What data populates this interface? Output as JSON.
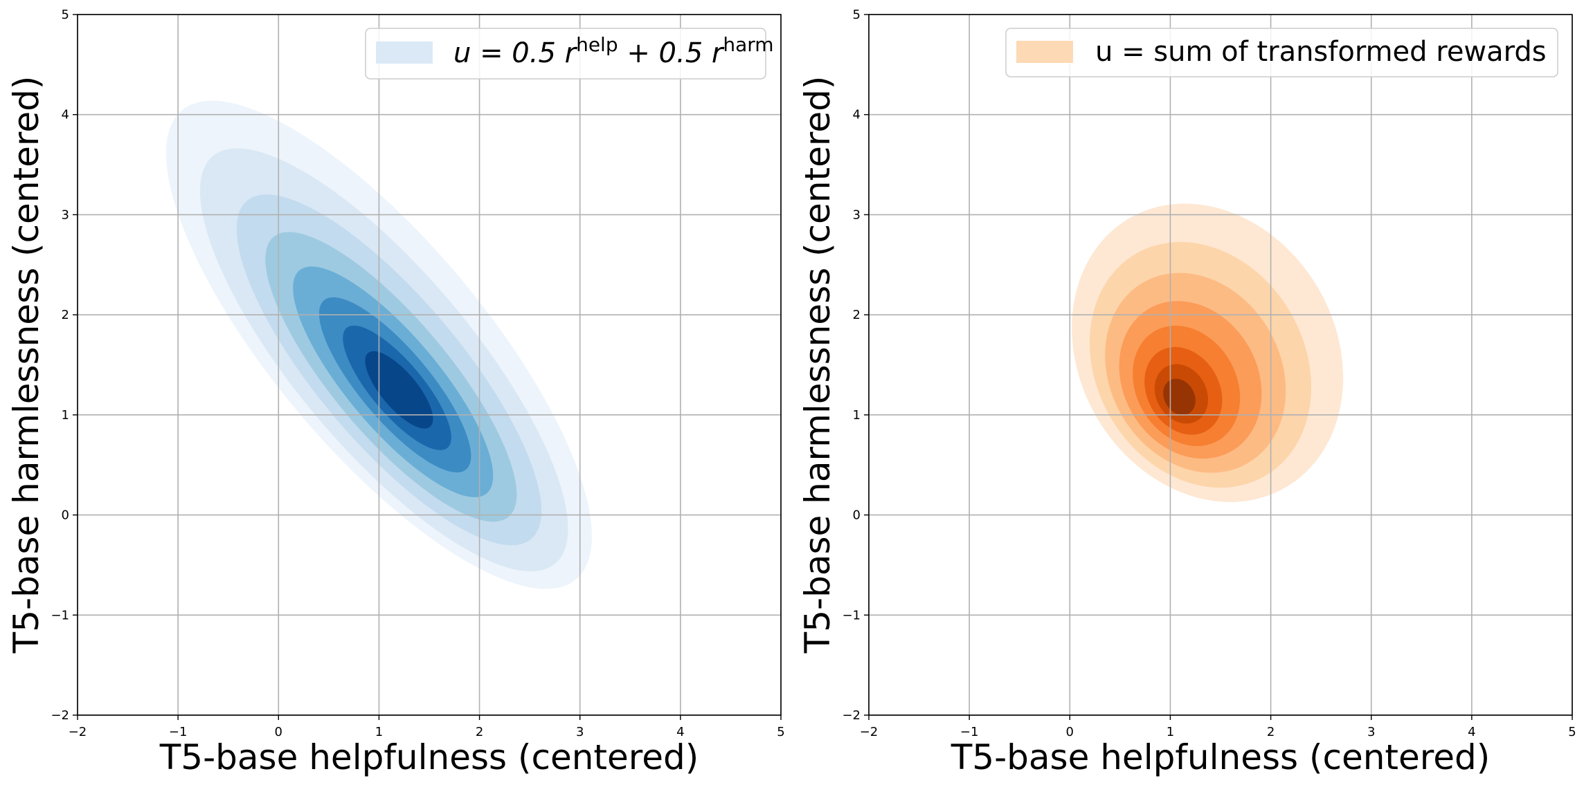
{
  "figure": {
    "background": "#ffffff",
    "grid_color": "#b0b0b0",
    "axis_color": "#000000"
  },
  "chart_data": [
    {
      "type": "kde_contour",
      "colormap": "Blues",
      "xlim": [
        -2,
        5
      ],
      "ylim": [
        -2,
        5
      ],
      "xticks": [
        -2,
        -1,
        0,
        1,
        2,
        3,
        4,
        5
      ],
      "yticks": [
        -2,
        -1,
        0,
        1,
        2,
        3,
        4,
        5
      ],
      "xtick_labels": [
        "−2",
        "−1",
        "0",
        "1",
        "2",
        "3",
        "4",
        "5"
      ],
      "ytick_labels": [
        "−2",
        "−1",
        "0",
        "1",
        "2",
        "3",
        "4",
        "5"
      ],
      "xlabel": "T5-base helpfulness (centered)",
      "ylabel": "T5-base harmlessness (centered)",
      "grid": true,
      "legend": {
        "placement": "top-right",
        "label_main": "u = 0.5 r",
        "label_sup1": "help",
        "label_mid": " + 0.5 r",
        "label_sup2": "harm",
        "swatch_color": "#dbe9f6"
      },
      "distribution": {
        "center": [
          1.15,
          1.25
        ],
        "correlation": "negative",
        "approx_outer_extent_x": [
          -1.2,
          3.3
        ],
        "approx_outer_extent_y": [
          -0.6,
          4.0
        ]
      },
      "level_colors": [
        "#edf4fb",
        "#dae8f5",
        "#c3dbee",
        "#9ecae1",
        "#6aaed6",
        "#3c8bc3",
        "#1b67ac",
        "#08468a"
      ]
    },
    {
      "type": "kde_contour",
      "colormap": "Oranges",
      "xlim": [
        -2,
        5
      ],
      "ylim": [
        -2,
        5
      ],
      "xticks": [
        -2,
        -1,
        0,
        1,
        2,
        3,
        4,
        5
      ],
      "yticks": [
        -2,
        -1,
        0,
        1,
        2,
        3,
        4,
        5
      ],
      "xtick_labels": [
        "−2",
        "−1",
        "0",
        "1",
        "2",
        "3",
        "4",
        "5"
      ],
      "ytick_labels": [
        "−2",
        "−1",
        "0",
        "1",
        "2",
        "3",
        "4",
        "5"
      ],
      "xlabel": "T5-base helpfulness (centered)",
      "ylabel": "T5-base harmlessness (centered)",
      "grid": true,
      "legend": {
        "placement": "top-right",
        "label": "u = sum of transformed rewards",
        "swatch_color": "#fdd9b5"
      },
      "distribution": {
        "center": [
          1.1,
          1.2
        ],
        "correlation": "slightly negative",
        "approx_outer_extent_x": [
          0.0,
          2.75
        ],
        "approx_outer_extent_y": [
          0.2,
          3.05
        ]
      },
      "level_colors": [
        "#fee8d3",
        "#fdd5ab",
        "#fdbb84",
        "#fc9c59",
        "#f67f31",
        "#e65f12",
        "#c94a04",
        "#963404"
      ]
    }
  ]
}
